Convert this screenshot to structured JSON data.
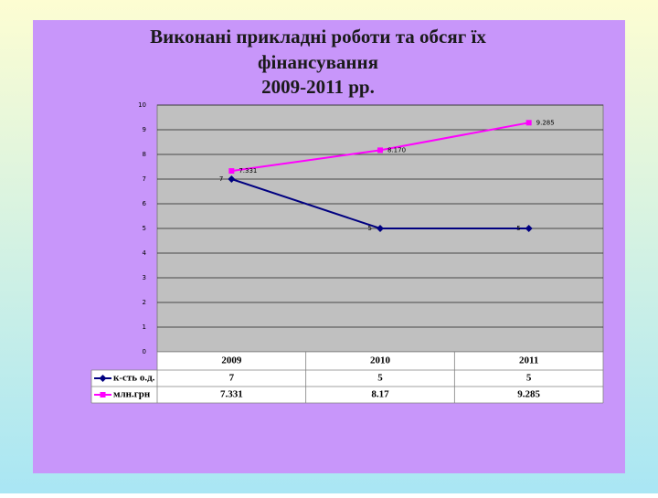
{
  "chart_data": {
    "type": "line",
    "title": [
      "Виконані прикладні роботи та обсяг їх",
      "фінансування",
      "2009-2011 рр."
    ],
    "categories": [
      "2009",
      "2010",
      "2011"
    ],
    "series": [
      {
        "name": "к-сть о.д.",
        "color": "#000080",
        "marker": "diamond",
        "values": [
          7,
          5,
          5
        ]
      },
      {
        "name": "млн.грн",
        "color": "#ff00ff",
        "marker": "square",
        "values": [
          7.331,
          8.17,
          9.285
        ],
        "value_labels": [
          "7.331",
          "8.170",
          "9.285"
        ]
      }
    ],
    "ylim": [
      0,
      10
    ],
    "yticks": [
      0,
      1,
      2,
      3,
      4,
      5,
      6,
      7,
      8,
      9,
      10
    ],
    "grid": true,
    "data_table": true
  }
}
